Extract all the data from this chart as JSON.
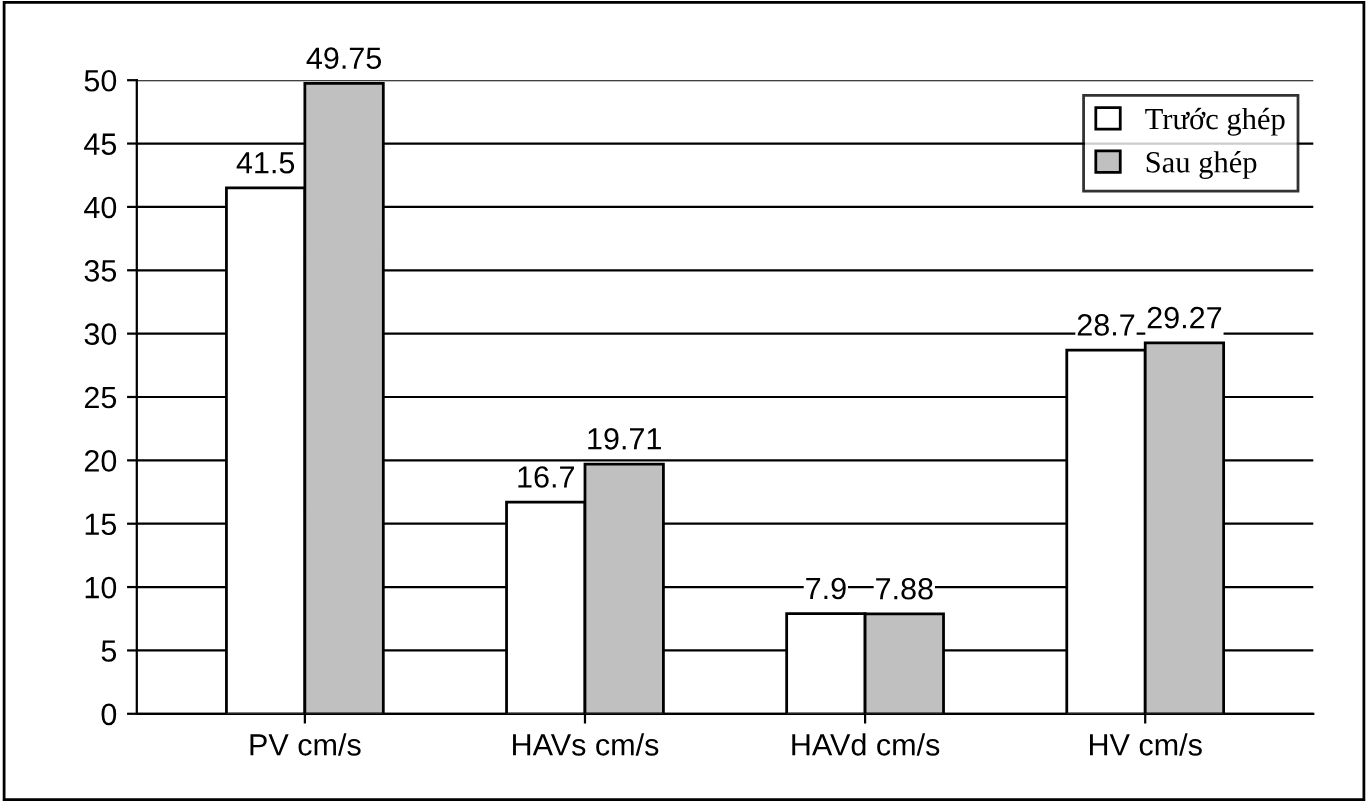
{
  "chart_data": {
    "type": "bar",
    "categories": [
      "PV cm/s",
      "HAVs cm/s",
      "HAVd cm/s",
      "HV cm/s"
    ],
    "series": [
      {
        "name": "Trước ghép",
        "color": "#ffffff",
        "values": [
          41.5,
          16.7,
          7.9,
          28.7
        ]
      },
      {
        "name": "Sau ghép",
        "color": "#c0c0c0",
        "values": [
          49.75,
          19.71,
          7.88,
          29.27
        ]
      }
    ],
    "ylim": [
      0,
      50
    ],
    "yticks": [
      0,
      5,
      10,
      15,
      20,
      25,
      30,
      35,
      40,
      45,
      50
    ],
    "grid": "y",
    "legend": "top right",
    "data_labels": true
  }
}
